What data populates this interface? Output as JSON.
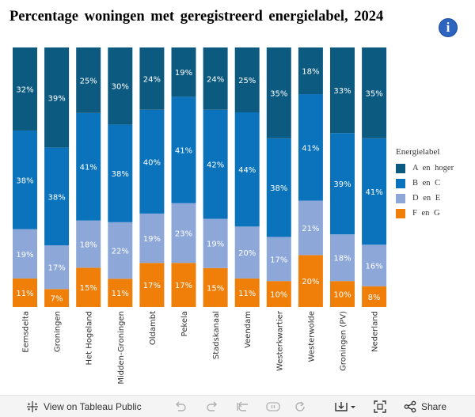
{
  "title": "Percentage woningen met geregistreerd energielabel, 2024",
  "info_icon": "info-icon",
  "legend": {
    "title": "Energielabel"
  },
  "chart_data": {
    "type": "bar",
    "stacked": true,
    "orientation": "vertical",
    "title": "Percentage woningen met geregistreerd energielabel, 2024",
    "categories": [
      "Eemsdelta",
      "Groningen",
      "Het Hogeland",
      "Midden-Groningen",
      "Oldambt",
      "Pekela",
      "Stadskanaal",
      "Veendam",
      "Westerkwartier",
      "Westerwolde",
      "Groningen (PV)",
      "Nederland"
    ],
    "series": [
      {
        "name": "F en G",
        "color": "#f07f09",
        "values": [
          11,
          7,
          15,
          11,
          17,
          17,
          15,
          11,
          10,
          20,
          10,
          8
        ],
        "labels": [
          "11%",
          "7%",
          "15%",
          "11%",
          "17%",
          "17%",
          "15%",
          "11%",
          "10%",
          "20%",
          "10%",
          "8%"
        ]
      },
      {
        "name": "D en E",
        "color": "#8da8d8",
        "values": [
          19,
          17,
          18,
          22,
          19,
          23,
          19,
          20,
          17,
          21,
          18,
          16
        ],
        "labels": [
          "19%",
          "17%",
          "18%",
          "22%",
          "19%",
          "23%",
          "19%",
          "20%",
          "17%",
          "21%",
          "18%",
          "16%"
        ]
      },
      {
        "name": "B en C",
        "color": "#0a73bb",
        "values": [
          38,
          38,
          41,
          38,
          40,
          41,
          42,
          44,
          38,
          41,
          39,
          41
        ],
        "labels": [
          "38%",
          "38%",
          "41%",
          "38%",
          "40%",
          "41%",
          "42%",
          "44%",
          "38%",
          "41%",
          "39%",
          "41%"
        ]
      },
      {
        "name": "A en hoger",
        "color": "#0d5a80",
        "values": [
          32,
          39,
          25,
          30,
          24,
          19,
          24,
          25,
          35,
          18,
          33,
          35
        ],
        "labels": [
          "32%",
          "39%",
          "25%",
          "30%",
          "24%",
          "19%",
          "24%",
          "25%",
          "35%",
          "18%",
          "33%",
          "35%"
        ]
      }
    ],
    "legend_order": [
      "A en hoger",
      "B en C",
      "D en E",
      "F en G"
    ],
    "ylim": [
      0,
      100
    ],
    "xlabel": "",
    "ylabel": "",
    "legend_position": "right",
    "grid": false
  },
  "footer": {
    "view_label": "View on Tableau Public",
    "share_label": "Share"
  }
}
